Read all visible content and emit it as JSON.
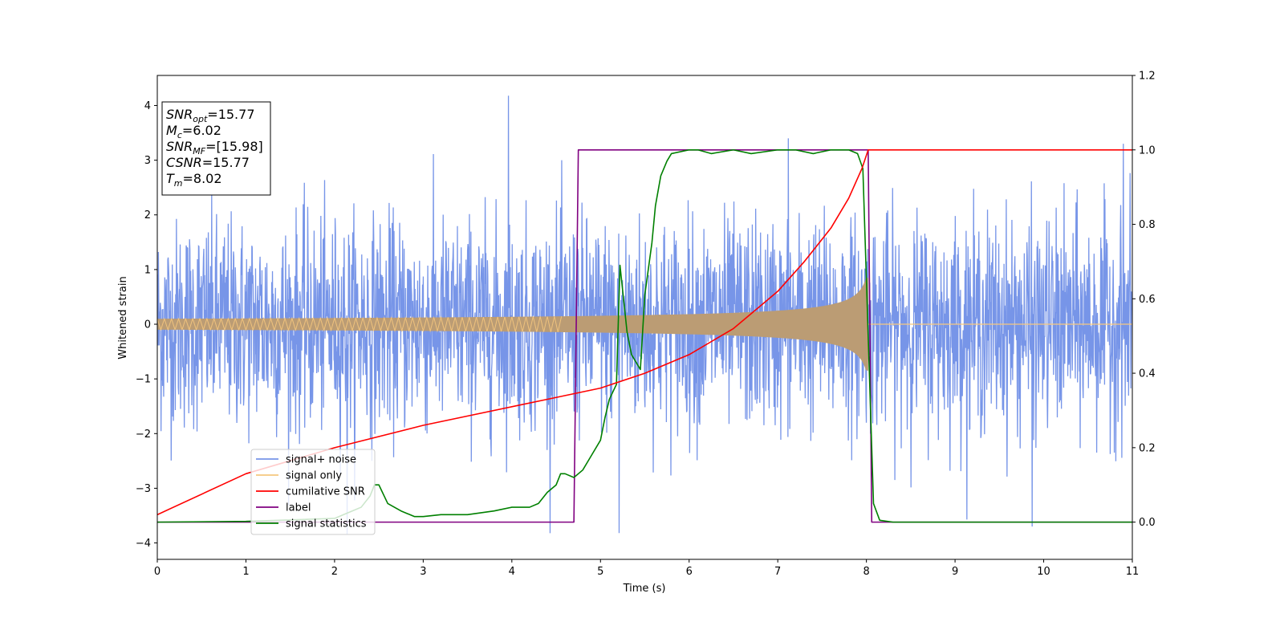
{
  "chart_data": {
    "type": "line",
    "xlabel": "Time (s)",
    "ylabel": "Whitened strain",
    "xlim": [
      0,
      11
    ],
    "ylim": [
      -4.3,
      4.55
    ],
    "y2lim": [
      -0.1,
      1.2
    ],
    "xticks": [
      "0",
      "1",
      "2",
      "3",
      "4",
      "5",
      "6",
      "7",
      "8",
      "9",
      "10",
      "11"
    ],
    "yticks": [
      "−4",
      "−3",
      "−2",
      "−1",
      "0",
      "1",
      "2",
      "3",
      "4"
    ],
    "y2ticks": [
      "0.0",
      "0.2",
      "0.4",
      "0.6",
      "0.8",
      "1.0",
      "1.2"
    ],
    "legend_position": "lower-left",
    "info_box": {
      "position": "upper-left",
      "lines": [
        {
          "base": "SNR",
          "sub": "opt",
          "value": "=15.77"
        },
        {
          "base": "M",
          "sub": "c",
          "value": "=6.02"
        },
        {
          "base": "SNR",
          "sub": "MF",
          "value": "=[15.98]"
        },
        {
          "base": "CSNR",
          "sub": "",
          "value": "=15.77"
        },
        {
          "base": "T",
          "sub": "m",
          "value": "=8.02"
        }
      ]
    },
    "series": [
      {
        "name": "signal+ noise",
        "color": "#7795e8",
        "axis": "left",
        "style": "noise",
        "noise_std": 1.0,
        "noise_range": [
          -3.85,
          4.18
        ],
        "notable_spikes": [
          [
            3.96,
            4.18
          ],
          [
            5.21,
            -3.82
          ],
          [
            2.14,
            -3.85
          ],
          [
            9.87,
            -3.7
          ],
          [
            10.9,
            3.3
          ],
          [
            7.12,
            3.4
          ]
        ]
      },
      {
        "name": "signal only",
        "color": "#f5c77e",
        "axis": "left",
        "style": "chirp",
        "t_merger": 8.02,
        "amplitude_start": 0.1,
        "amplitude_peak": 0.85
      },
      {
        "name": "cumilative SNR",
        "color": "#ff0000",
        "axis": "right",
        "x": [
          0,
          1,
          2,
          3,
          4,
          4.5,
          5,
          5.5,
          6,
          6.5,
          7,
          7.3,
          7.6,
          7.8,
          7.95,
          8.02,
          8.03,
          11
        ],
        "y": [
          0.02,
          0.13,
          0.2,
          0.26,
          0.31,
          0.335,
          0.36,
          0.4,
          0.45,
          0.52,
          0.62,
          0.7,
          0.79,
          0.87,
          0.95,
          1.0,
          1.0,
          1.0
        ]
      },
      {
        "name": "label",
        "color": "#800080",
        "axis": "right",
        "x": [
          0,
          4.7,
          4.75,
          8.02,
          8.06,
          11
        ],
        "y": [
          0,
          0,
          1,
          1,
          0,
          0
        ]
      },
      {
        "name": "signal statistics",
        "color": "#008000",
        "axis": "right",
        "x": [
          0,
          1,
          2,
          2.3,
          2.4,
          2.45,
          2.5,
          2.6,
          2.75,
          2.9,
          3.0,
          3.2,
          3.5,
          3.8,
          4.0,
          4.2,
          4.3,
          4.4,
          4.5,
          4.55,
          4.6,
          4.7,
          4.8,
          4.9,
          5.0,
          5.05,
          5.1,
          5.18,
          5.22,
          5.3,
          5.35,
          5.45,
          5.5,
          5.58,
          5.62,
          5.68,
          5.75,
          5.8,
          6.0,
          6.1,
          6.25,
          6.5,
          6.7,
          7.0,
          7.2,
          7.4,
          7.6,
          7.8,
          7.9,
          7.96,
          8.02,
          8.08,
          8.15,
          8.3,
          9,
          10,
          11
        ],
        "y": [
          0.0,
          0.002,
          0.01,
          0.04,
          0.07,
          0.1,
          0.1,
          0.05,
          0.03,
          0.015,
          0.015,
          0.02,
          0.02,
          0.03,
          0.04,
          0.04,
          0.05,
          0.08,
          0.1,
          0.13,
          0.13,
          0.12,
          0.14,
          0.18,
          0.22,
          0.28,
          0.33,
          0.37,
          0.69,
          0.51,
          0.45,
          0.41,
          0.61,
          0.75,
          0.85,
          0.93,
          0.97,
          0.99,
          1.0,
          1.0,
          0.99,
          1.0,
          0.99,
          1.0,
          1.0,
          0.99,
          1.0,
          1.0,
          0.99,
          0.95,
          0.5,
          0.05,
          0.005,
          0.0,
          0.0,
          0.0,
          0.0
        ]
      }
    ]
  }
}
